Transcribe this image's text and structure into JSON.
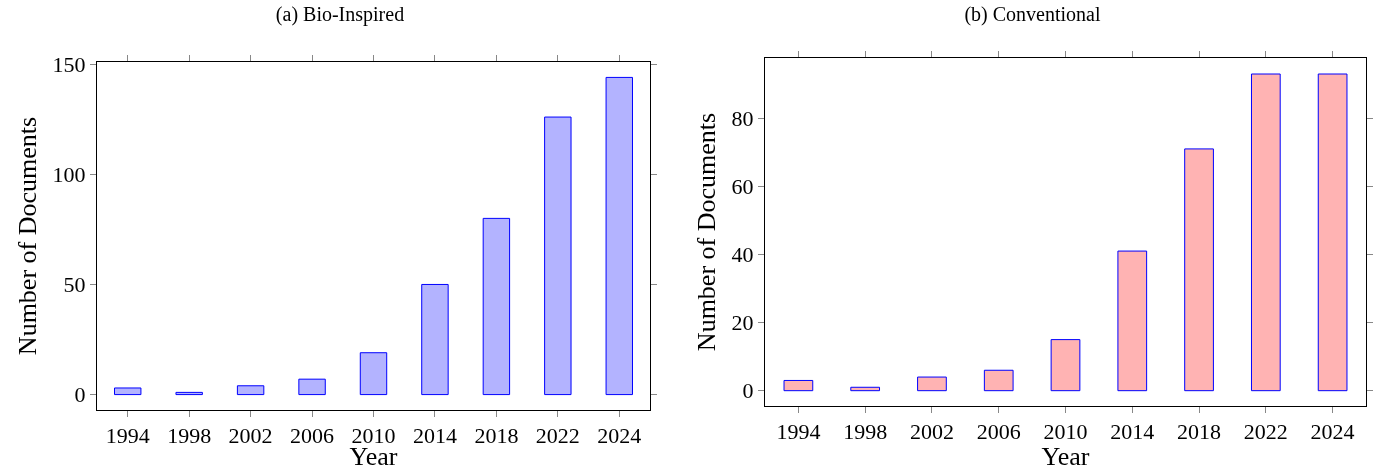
{
  "chart_data": [
    {
      "type": "bar",
      "title": "(a) Bio-Inspired",
      "xlabel": "Year",
      "ylabel": "Number of Documents",
      "categories": [
        "1994",
        "1998",
        "2002",
        "2006",
        "2010",
        "2014",
        "2018",
        "2022",
        "2024"
      ],
      "values": [
        3,
        1,
        4,
        7,
        19,
        50,
        80,
        126,
        144
      ],
      "color": "#b3b3ff",
      "ylim": [
        -7,
        151
      ],
      "yticks": [
        0,
        50,
        100,
        150
      ],
      "grid": false
    },
    {
      "type": "bar",
      "title": "(b) Conventional",
      "xlabel": "Year",
      "ylabel": "Number of Documents",
      "categories": [
        "1994",
        "1998",
        "2002",
        "2006",
        "2010",
        "2014",
        "2018",
        "2022",
        "2024"
      ],
      "values": [
        3,
        1,
        4,
        6,
        15,
        41,
        71,
        93,
        93
      ],
      "color": "#ffb3b3",
      "ylim": [
        -4.5,
        97.7
      ],
      "yticks": [
        0,
        20,
        40,
        60,
        80
      ],
      "grid": false
    }
  ]
}
